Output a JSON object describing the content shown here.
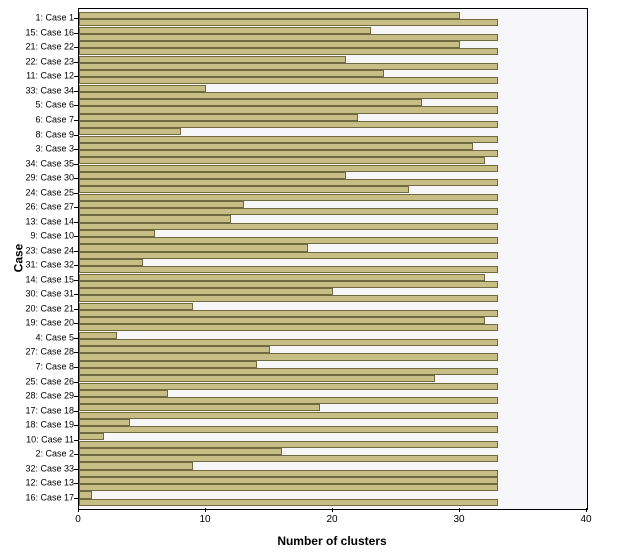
{
  "chart": {
    "type": "bar-horizontal-paired",
    "x_axis_title": "Number of clusters",
    "y_axis_title": "Case",
    "xlim": [
      0,
      40
    ],
    "x_ticks": [
      0,
      10,
      20,
      30,
      40
    ],
    "full_value": 33,
    "background_color": "#f7f7fa",
    "bar_fill": "#c6be84",
    "bar_stroke": "#6f6a3f",
    "plot_border": "#000000",
    "label_fontsize": 9,
    "axis_title_fontsize": 12,
    "tick_fontsize": 10,
    "rows": [
      {
        "label": "1: Case 1",
        "short": 30
      },
      {
        "label": "15: Case 16",
        "short": 23
      },
      {
        "label": "21: Case 22",
        "short": 30
      },
      {
        "label": "22: Case 23",
        "short": 21
      },
      {
        "label": "11: Case 12",
        "short": 24
      },
      {
        "label": "33: Case 34",
        "short": 10
      },
      {
        "label": "5: Case 6",
        "short": 27
      },
      {
        "label": "6: Case 7",
        "short": 22
      },
      {
        "label": "8: Case 9",
        "short": 8
      },
      {
        "label": "3: Case 3",
        "short": 31
      },
      {
        "label": "34: Case 35",
        "short": 32
      },
      {
        "label": "29: Case 30",
        "short": 21
      },
      {
        "label": "24: Case 25",
        "short": 26
      },
      {
        "label": "26: Case 27",
        "short": 13
      },
      {
        "label": "13: Case 14",
        "short": 12
      },
      {
        "label": "9: Case 10",
        "short": 6
      },
      {
        "label": "23: Case 24",
        "short": 18
      },
      {
        "label": "31: Case 32",
        "short": 5
      },
      {
        "label": "14: Case 15",
        "short": 32
      },
      {
        "label": "30: Case 31",
        "short": 20
      },
      {
        "label": "20: Case 21",
        "short": 9
      },
      {
        "label": "19: Case 20",
        "short": 32
      },
      {
        "label": "4: Case 5",
        "short": 3
      },
      {
        "label": "27: Case 28",
        "short": 15
      },
      {
        "label": "7: Case 8",
        "short": 14
      },
      {
        "label": "25: Case 26",
        "short": 28
      },
      {
        "label": "28: Case 29",
        "short": 7
      },
      {
        "label": "17: Case 18",
        "short": 19
      },
      {
        "label": "18: Case 19",
        "short": 4
      },
      {
        "label": "10: Case 11",
        "short": 2
      },
      {
        "label": "2: Case 2",
        "short": 16
      },
      {
        "label": "32: Case 33",
        "short": 9
      },
      {
        "label": "12: Case 13",
        "short": 33
      },
      {
        "label": "16: Case 17",
        "short": 1
      }
    ]
  }
}
